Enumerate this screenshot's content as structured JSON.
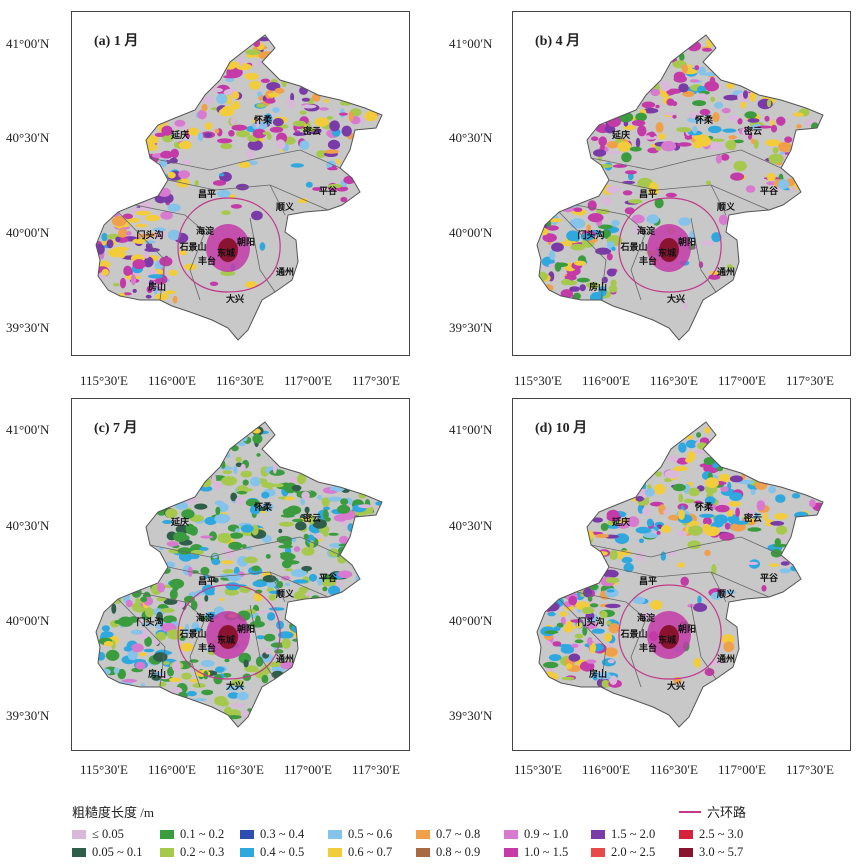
{
  "panels": [
    {
      "label": "(a) 1 月",
      "theme": "winter"
    },
    {
      "label": "(b) 4 月",
      "theme": "spring"
    },
    {
      "label": "(c) 7 月",
      "theme": "summer"
    },
    {
      "label": "(d) 10 月",
      "theme": "autumn"
    }
  ],
  "lat_labels": [
    "41°00′N",
    "40°30′N",
    "40°00′N",
    "39°30′N"
  ],
  "lon_labels": [
    "115°30′E",
    "116°00′E",
    "116°30′E",
    "117°00′E",
    "117°30′E"
  ],
  "places": [
    "延庆",
    "怀柔",
    "密云",
    "昌平",
    "平谷",
    "顺义",
    "门头沟",
    "海淀",
    "石景山",
    "朝阳",
    "东城",
    "丰台",
    "通州",
    "房山",
    "大兴"
  ],
  "legend": {
    "title": "粗糙度长度 /m",
    "ring_label": "六环路",
    "items": [
      {
        "label": "≤ 0.05",
        "color": "#d9b8d9"
      },
      {
        "label": "0.05 ~ 0.1",
        "color": "#2f5e4a"
      },
      {
        "label": "0.1 ~ 0.2",
        "color": "#3b9b3f"
      },
      {
        "label": "0.2 ~ 0.3",
        "color": "#a6c94d"
      },
      {
        "label": "0.3 ~ 0.4",
        "color": "#2e4fb0"
      },
      {
        "label": "0.4 ~ 0.5",
        "color": "#2fa8e0"
      },
      {
        "label": "0.5 ~ 0.6",
        "color": "#86c3ea"
      },
      {
        "label": "0.6 ~ 0.7",
        "color": "#f2cc3a"
      },
      {
        "label": "0.7 ~ 0.8",
        "color": "#f0a04a"
      },
      {
        "label": "0.8 ~ 0.9",
        "color": "#a86a42"
      },
      {
        "label": "0.9 ~ 1.0",
        "color": "#d77ad0"
      },
      {
        "label": "1.0 ~ 1.5",
        "color": "#c43aa8"
      },
      {
        "label": "1.5 ~ 2.0",
        "color": "#7a3aa8"
      },
      {
        "label": "2.0 ~ 2.5",
        "color": "#e84a4a"
      },
      {
        "label": "2.5 ~ 3.0",
        "color": "#d6223a"
      },
      {
        "label": "3.0 ~ 5.7",
        "color": "#8a1430"
      }
    ]
  },
  "colors": {
    "background_gray": "#c8c8c8",
    "ring": "#c03a8a",
    "border": "#555555"
  }
}
